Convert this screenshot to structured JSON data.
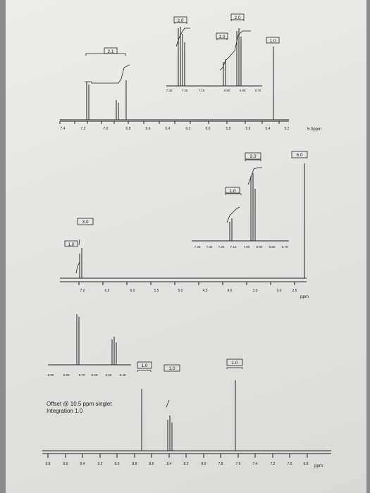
{
  "spectrum1": {
    "axis_labels": [
      "7.4",
      "7.2",
      "7.0",
      "6.8",
      "6.6",
      "6.4",
      "6.2",
      "6.0",
      "5.8",
      "5.6",
      "5.4",
      "5.2"
    ],
    "unit": "5.0ppm",
    "integrations": [
      "2.1",
      "2.0",
      "1.0",
      "2.0",
      "1.0"
    ],
    "inset_labels": [
      "7.30",
      "7.20",
      "7.10",
      "6.90",
      "6.80",
      "6.70"
    ]
  },
  "spectrum2": {
    "axis_labels": [
      "7.0",
      "6.5",
      "6.0",
      "5.5",
      "5.0",
      "4.5",
      "4.0",
      "3.5",
      "3.0",
      "2.5"
    ],
    "unit": "ppm",
    "integrations": [
      "3.0",
      "1.0",
      "1.0",
      "3.0",
      "6.0"
    ],
    "inset_labels": [
      "7.40",
      "7.30",
      "7.20",
      "7.10",
      "7.00",
      "6.90",
      "6.80",
      "6.70"
    ]
  },
  "spectrum3": {
    "axis_labels": [
      "9.8",
      "9.6",
      "9.4",
      "9.2",
      "9.0",
      "8.8",
      "8.6",
      "8.4",
      "8.2",
      "8.0",
      "7.8",
      "7.6",
      "7.4",
      "7.2",
      "7.0",
      "6.8"
    ],
    "unit": "ppm",
    "integrations": [
      "1.0",
      "1.0",
      "1.0"
    ],
    "inset_labels": [
      "8.90",
      "8.80",
      "8.70",
      "8.60",
      "8.50",
      "8.40"
    ],
    "offset_note": "Offset @ 10.5 ppm singlet",
    "integration_note": "Integration 1.0"
  }
}
